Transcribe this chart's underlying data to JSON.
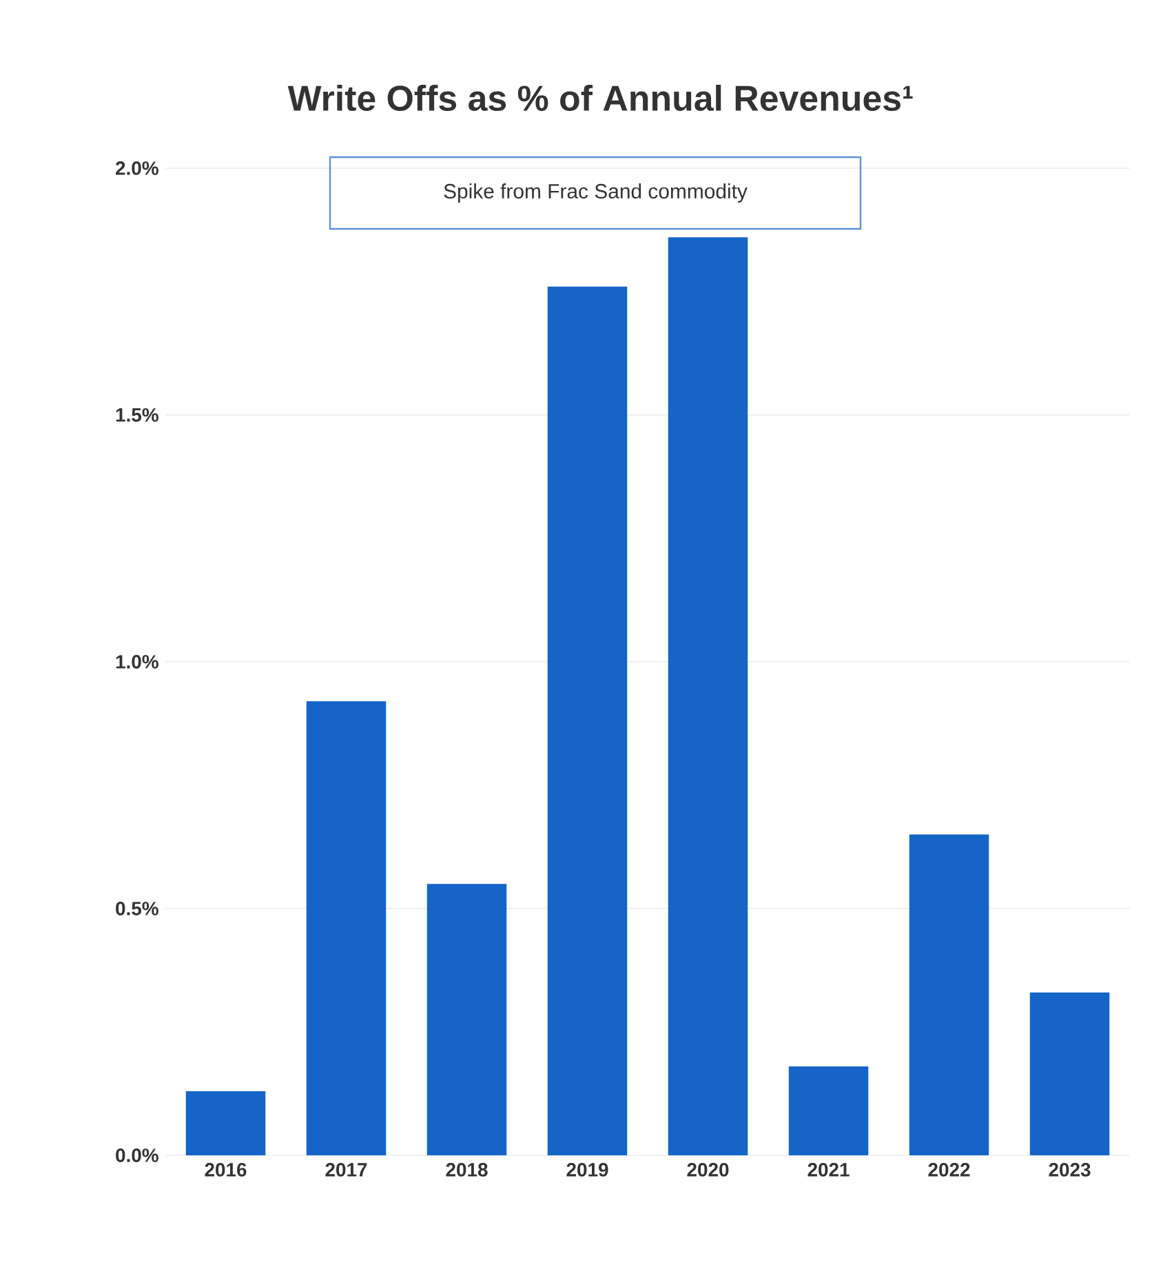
{
  "chart_data": {
    "type": "bar",
    "title": "Write Offs as % of Annual Revenues¹",
    "categories": [
      "2016",
      "2017",
      "2018",
      "2019",
      "2020",
      "2021",
      "2022",
      "2023"
    ],
    "values": [
      0.13,
      0.92,
      0.55,
      1.76,
      1.86,
      0.18,
      0.65,
      0.33
    ],
    "color": "#1565c8",
    "ylim": [
      0,
      2
    ],
    "yticks": [
      {
        "value": 0,
        "label": "0.0%"
      },
      {
        "value": 0.5,
        "label": "0.5%"
      },
      {
        "value": 1,
        "label": "1.0%"
      },
      {
        "value": 1.5,
        "label": "1.5%"
      },
      {
        "value": 2,
        "label": "2.0%"
      }
    ],
    "grid": "y",
    "annotations": [
      "Spike from Frac Sand commodity"
    ]
  }
}
